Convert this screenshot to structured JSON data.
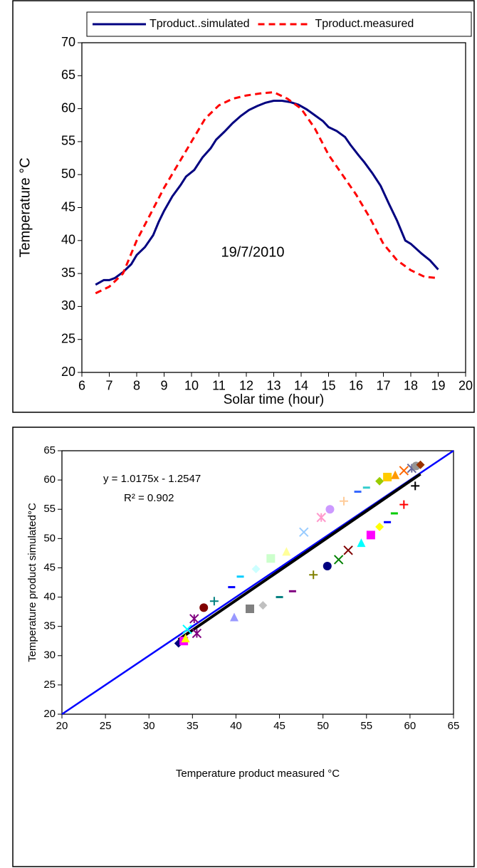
{
  "chart_data": [
    {
      "type": "line",
      "y_label": "Temperature °C",
      "x_label": "Solar time (hour)",
      "annotation": "19/7/2010",
      "xlim": [
        6,
        20
      ],
      "xticks": [
        6,
        7,
        8,
        9,
        10,
        11,
        12,
        13,
        14,
        15,
        16,
        17,
        18,
        19,
        20
      ],
      "ylim": [
        20,
        70
      ],
      "yticks": [
        20,
        25,
        30,
        35,
        40,
        45,
        50,
        55,
        60,
        65,
        70
      ],
      "legend": "top",
      "series": [
        {
          "name": "Tproduct..simulated",
          "color": "#000080",
          "dash": false,
          "x": [
            6.5,
            6.8,
            7,
            7.2,
            7.5,
            7.8,
            8,
            8.3,
            8.6,
            8.8,
            9,
            9.3,
            9.6,
            9.8,
            10.1,
            10.4,
            10.7,
            10.9,
            11.2,
            11.5,
            11.8,
            12.1,
            12.4,
            12.7,
            13,
            13.3,
            13.6,
            13.9,
            14.2,
            14.5,
            14.8,
            15,
            15.3,
            15.6,
            15.8,
            16.1,
            16.3,
            16.6,
            16.9,
            17.2,
            17.5,
            17.8,
            18,
            18.4,
            18.7,
            19
          ],
          "values": [
            33.3,
            34,
            34,
            34.3,
            35.2,
            36.4,
            37.8,
            39,
            40.8,
            42.8,
            44.5,
            46.7,
            48.4,
            49.7,
            50.7,
            52.6,
            54,
            55.3,
            56.5,
            57.8,
            58.9,
            59.8,
            60.4,
            60.9,
            61.2,
            61.2,
            61,
            60.6,
            59.9,
            59,
            58.1,
            57.2,
            56.6,
            55.7,
            54.5,
            52.9,
            51.9,
            50.2,
            48.3,
            45.6,
            43,
            40,
            39.5,
            38,
            37,
            35.6
          ]
        },
        {
          "name": "Tproduct.measured",
          "color": "#ff0000",
          "dash": true,
          "x": [
            6.5,
            7,
            7.5,
            8,
            8.5,
            9,
            9.5,
            10,
            10.5,
            11,
            11.5,
            12,
            12.5,
            13,
            13.5,
            14,
            14.5,
            15,
            15.5,
            16,
            16.5,
            17,
            17.5,
            18,
            18.5,
            19
          ],
          "values": [
            32,
            33,
            35,
            40,
            44,
            48,
            51.5,
            55,
            58.5,
            60.5,
            61.5,
            62,
            62.3,
            62.5,
            61.5,
            60,
            57,
            53,
            50,
            47,
            43.5,
            39.5,
            37,
            35.5,
            34.5,
            34.3
          ]
        }
      ]
    },
    {
      "type": "scatter",
      "y_label": "Temperature  product simulated°C",
      "x_label": "Temperature  product measured  °C",
      "equation": "y = 1.0175x - 1.2547",
      "r_squared": "R² = 0.902",
      "fit": {
        "slope": 1.0175,
        "intercept": -1.2547,
        "color": "#000000"
      },
      "identity_line": {
        "color": "#0000ff"
      },
      "xlim": [
        20,
        65
      ],
      "xticks": [
        20,
        25,
        30,
        35,
        40,
        45,
        50,
        55,
        60,
        65
      ],
      "ylim": [
        20,
        65
      ],
      "yticks": [
        20,
        25,
        30,
        35,
        40,
        45,
        50,
        55,
        60,
        65
      ],
      "series": [
        {
          "x": [
            33.4,
            34,
            34.2,
            34.4,
            35.5,
            35.2,
            36.3,
            37.5,
            39.5,
            40.5,
            42.3,
            44,
            45.8,
            47.8,
            49.8,
            50.8,
            52.4,
            54,
            55,
            56.5,
            57.4,
            58.3,
            59.3,
            60.2,
            60.7,
            61.2,
            60.6,
            39.8,
            41.6,
            43.1,
            45,
            46.5,
            48.9,
            50.5,
            51.8,
            52.9,
            54.4,
            55.5,
            56.5,
            57.4,
            58.2,
            59.3
          ],
          "values": [
            32.1,
            32.5,
            33,
            34.5,
            33.8,
            36.3,
            38.2,
            39.3,
            41.7,
            43.5,
            44.8,
            46.6,
            47.8,
            51.1,
            53.6,
            55,
            56.4,
            58,
            58.7,
            59.8,
            60.5,
            60.9,
            61.6,
            62,
            62.4,
            62.6,
            59,
            36.6,
            38,
            38.6,
            40,
            41,
            43.8,
            45.3,
            46.4,
            48,
            49.3,
            50.6,
            52,
            52.8,
            54.3,
            55.8
          ],
          "colors": [
            "#000080",
            "#ff00ff",
            "#ffff00",
            "#00ffff",
            "#800080",
            "#800080",
            "#800000",
            "#008080",
            "#0000ff",
            "#00ccff",
            "#ccffff",
            "#ccffcc",
            "#ffff99",
            "#99ccff",
            "#ff99cc",
            "#cc99ff",
            "#ffcc99",
            "#3366ff",
            "#33cccc",
            "#99cc00",
            "#ffcc00",
            "#ff9900",
            "#ff6600",
            "#666699",
            "#969696",
            "#993300",
            "#000000",
            "#9999ff",
            "#808080",
            "#c0c0c0",
            "#008080",
            "#800080",
            "#808000",
            "#000080",
            "#008000",
            "#800000",
            "#00ffff",
            "#ff00ff",
            "#ffff00",
            "#0000ff",
            "#00cc00",
            "#ff0000"
          ],
          "markers": [
            "diamond",
            "square",
            "triangle",
            "x",
            "star",
            "star",
            "circle",
            "plus",
            "dash",
            "dash",
            "diamond",
            "square",
            "triangle",
            "x",
            "star",
            "circle",
            "plus",
            "dash",
            "dash",
            "diamond",
            "square",
            "triangle",
            "x",
            "star",
            "circle",
            "diamond",
            "plus",
            "triangle",
            "square",
            "diamond",
            "dash",
            "dash",
            "plus",
            "circle",
            "x",
            "x",
            "triangle",
            "square",
            "diamond",
            "dash",
            "dash",
            "plus"
          ]
        }
      ]
    }
  ]
}
